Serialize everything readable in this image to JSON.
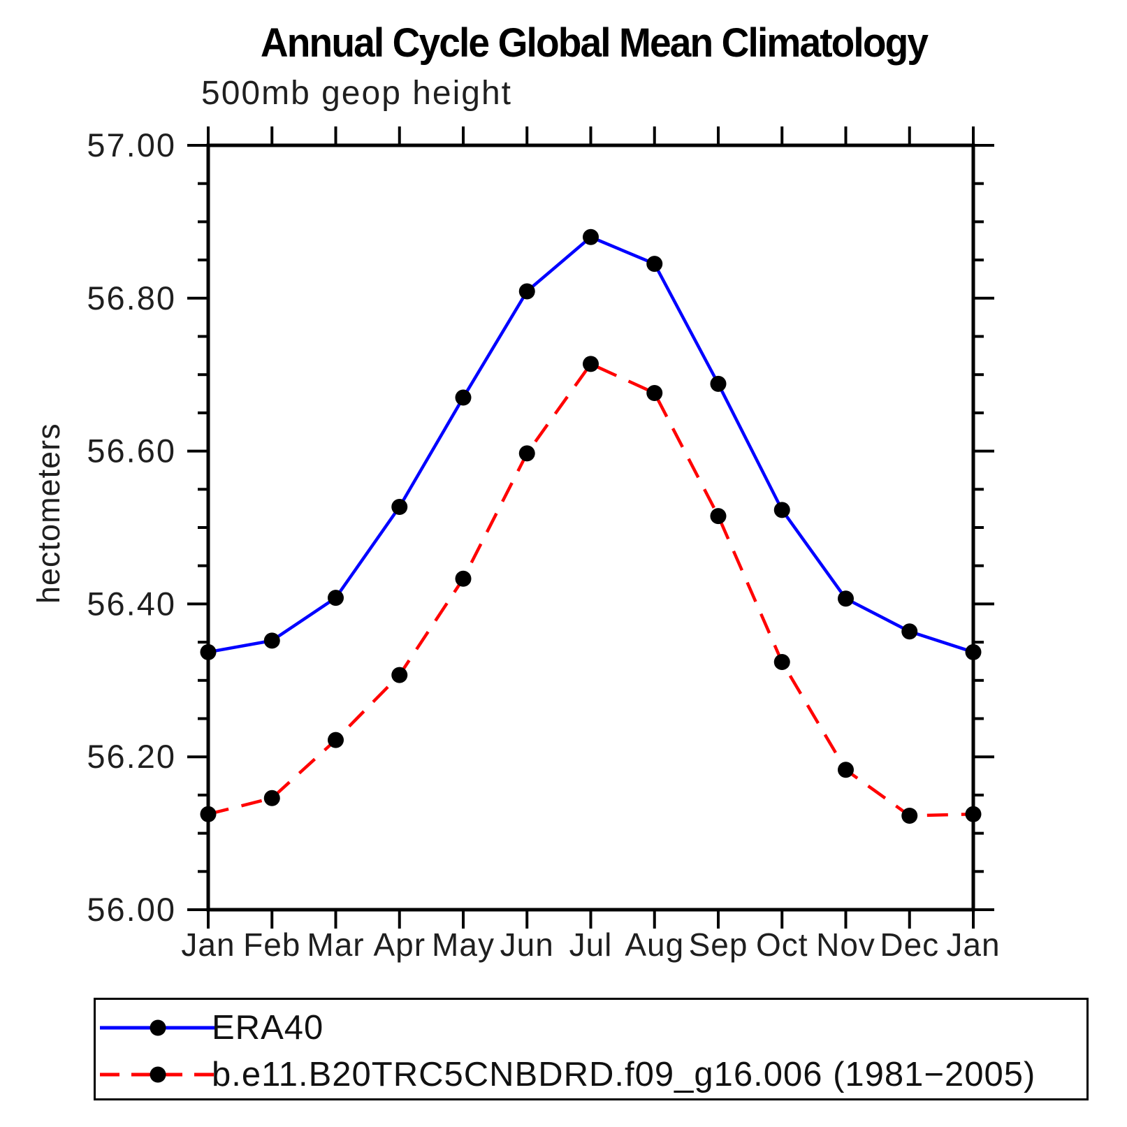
{
  "title": "Annual Cycle Global Mean Climatology",
  "subtitle": "500mb geop height",
  "ylabel": "hectometers",
  "chart_data": {
    "type": "line",
    "categories": [
      "Jan",
      "Feb",
      "Mar",
      "Apr",
      "May",
      "Jun",
      "Jul",
      "Aug",
      "Sep",
      "Oct",
      "Nov",
      "Dec",
      "Jan"
    ],
    "series": [
      {
        "name": "ERA40",
        "color": "#0000ff",
        "line_style": "solid",
        "marker": "filled-circle",
        "marker_color": "#000000",
        "values": [
          56.337,
          56.352,
          56.408,
          56.527,
          56.67,
          56.809,
          56.88,
          56.845,
          56.688,
          56.523,
          56.407,
          56.364,
          56.337
        ]
      },
      {
        "name": "b.e11.B20TRC5CNBDRD.f09_g16.006 (1981−2005)",
        "color": "#ff0000",
        "line_style": "dashed",
        "marker": "filled-circle",
        "marker_color": "#000000",
        "values": [
          56.125,
          56.146,
          56.222,
          56.307,
          56.433,
          56.597,
          56.714,
          56.676,
          56.515,
          56.324,
          56.183,
          56.123,
          56.125
        ]
      }
    ],
    "ylim": [
      56.0,
      57.0
    ],
    "ytick_major_step": 0.2,
    "ytick_minor_step": 0.05,
    "ytick_labels": [
      "56.00",
      "56.20",
      "56.40",
      "56.60",
      "56.80",
      "57.00"
    ],
    "grid": false,
    "legend_position": "bottom",
    "axis_color": "#000000",
    "tick_label_color": "#1f1f1f"
  }
}
